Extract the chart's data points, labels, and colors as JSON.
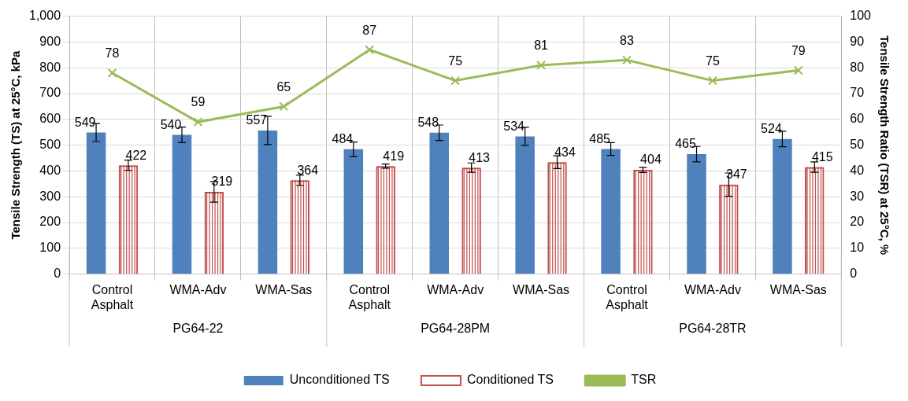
{
  "chart_data": {
    "type": "bar",
    "xlabel": null,
    "ylabel": "Tensile Strength (TS) at 25°C, kPa",
    "y2label": "Tensile Strength Ratio (TSR) at 25°C, %",
    "categories": [
      "Control Asphalt",
      "WMA-Adv",
      "WMA-Sas",
      "Control Asphalt",
      "WMA-Adv",
      "WMA-Sas",
      "Control Asphalt",
      "WMA-Adv",
      "WMA-Sas"
    ],
    "annotations": [
      "PG64-22",
      "PG64-28PM",
      "PG64-28TR"
    ],
    "series": [
      {
        "name": "Unconditioned TS",
        "color": "#4f81bd",
        "values": [
          549,
          540,
          557,
          484,
          548,
          534,
          485,
          465,
          524
        ],
        "errors": [
          35,
          30,
          55,
          28,
          30,
          35,
          25,
          30,
          30
        ]
      },
      {
        "name": "Conditioned TS",
        "color": "#c0504d",
        "values": [
          422,
          319,
          364,
          419,
          413,
          434,
          404,
          347,
          415
        ],
        "errors": [
          20,
          40,
          20,
          8,
          18,
          25,
          10,
          45,
          20
        ]
      },
      {
        "name": "TSR",
        "type": "line",
        "axis": "y2",
        "color": "#9bbb59",
        "marker": "cross",
        "values": [
          78,
          59,
          65,
          87,
          75,
          81,
          83,
          75,
          79
        ]
      }
    ],
    "ylim": [
      0,
      1000
    ],
    "yticks": [
      0,
      100,
      200,
      300,
      400,
      500,
      600,
      700,
      800,
      900,
      {
        "value": 1000,
        "label": "1,000"
      }
    ],
    "y2lim": [
      0,
      100
    ],
    "y2ticks": [
      0,
      10,
      20,
      30,
      40,
      50,
      60,
      70,
      80,
      90,
      100
    ],
    "grid": true,
    "legend": "bottom",
    "data_labels": true
  }
}
